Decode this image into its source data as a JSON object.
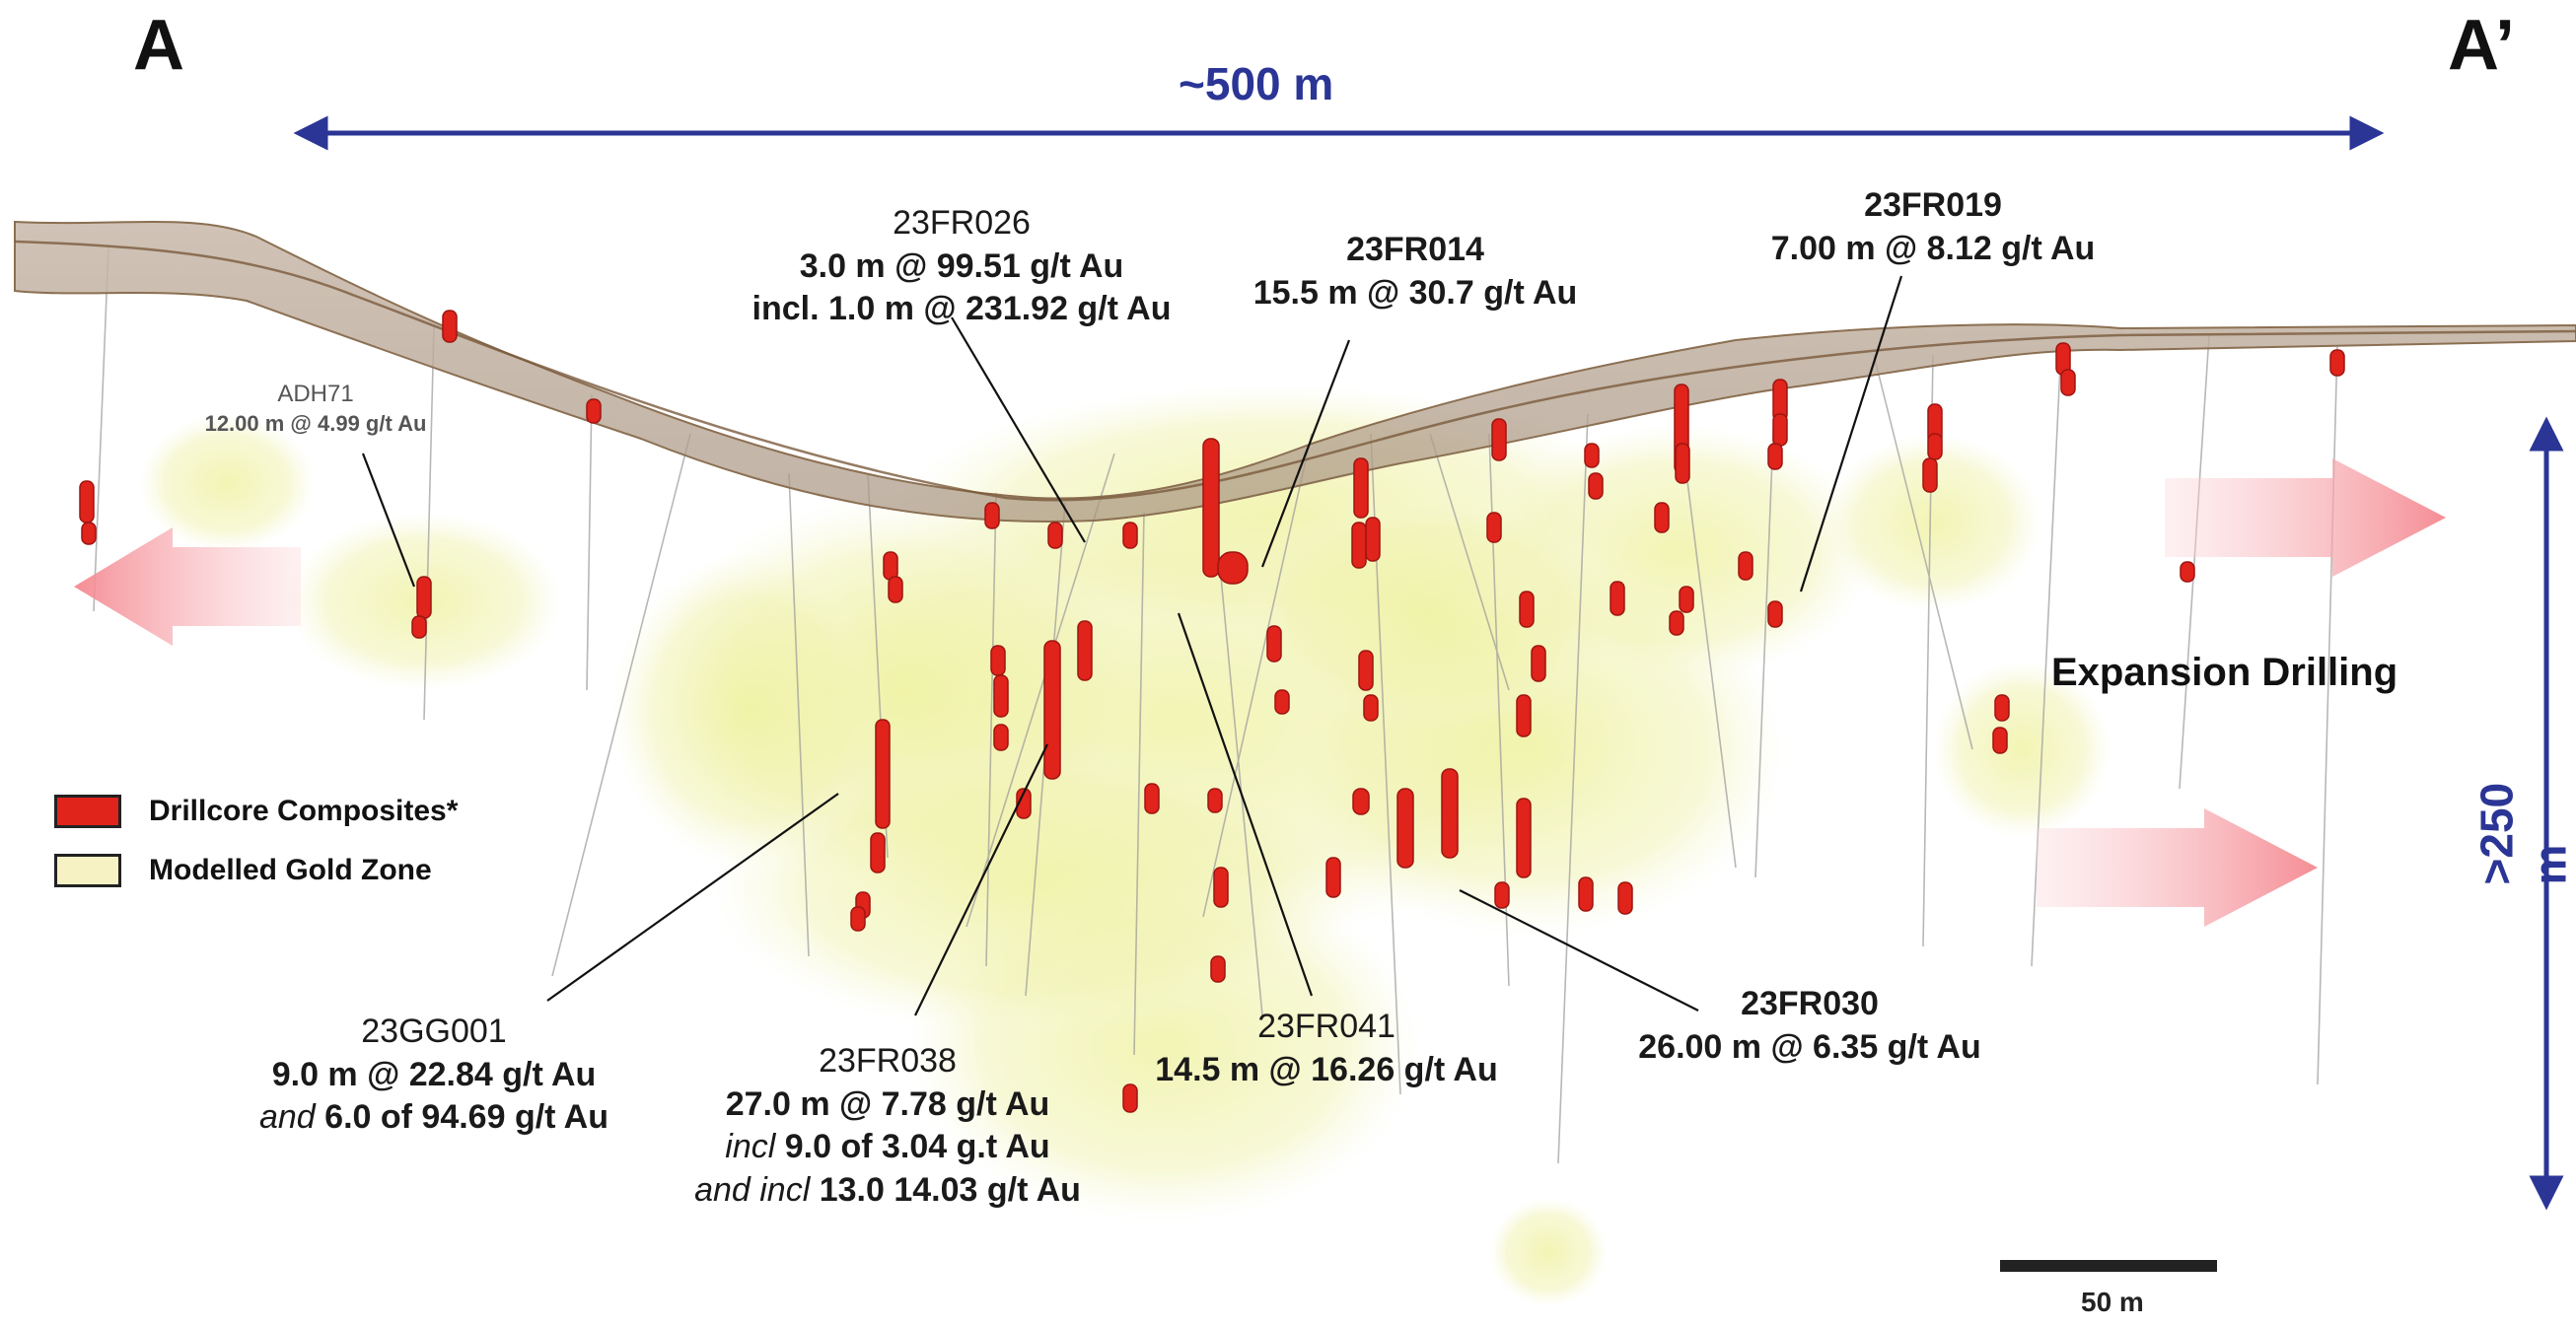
{
  "section": {
    "left_label": "A",
    "right_label": "A’",
    "width_label": "~500 m",
    "depth_label": ">250 m"
  },
  "legend": [
    {
      "label": "Drillcore Composites*",
      "color": "#e0231b"
    },
    {
      "label": "Modelled Gold Zone",
      "color": "#f7f2c4"
    }
  ],
  "expansion_label": "Expansion Drilling",
  "scale_bar": {
    "label": "50 m"
  },
  "colors": {
    "dimension_arrow": "#2b3595",
    "core": "#e0231b",
    "gold_zone": "#eef19a",
    "surface": "#b9a591",
    "expansion_arrow": "#f2a0a6"
  },
  "intercepts": {
    "adh71": {
      "hole": "ADH71",
      "line1": "12.00 m @ 4.99 g/t Au"
    },
    "fr026": {
      "hole": "23FR026",
      "line1": "3.0 m @ 99.51 g/t Au",
      "line2": "incl. 1.0 m @ 231.92 g/t Au"
    },
    "fr014": {
      "hole": "23FR014",
      "line1": "15.5 m @ 30.7 g/t Au"
    },
    "fr019": {
      "hole": "23FR019",
      "line1": "7.00 m  @ 8.12 g/t Au"
    },
    "gg001": {
      "hole": "23GG001",
      "line1": "9.0 m @ 22.84 g/t Au",
      "line2_prefix": "and",
      "line2": " 6.0 of 94.69 g/t Au"
    },
    "fr038": {
      "hole": "23FR038",
      "line1": "27.0 m @ 7.78 g/t Au",
      "line2_prefix": "incl",
      "line2": " 9.0 of 3.04 g.t Au",
      "line3_prefix": "and incl",
      "line3": " 13.0 14.03 g/t Au"
    },
    "fr041": {
      "hole": "23FR041",
      "line1": "14.5 m @ 16.26 g/t Au"
    },
    "fr030": {
      "hole": "23FR030",
      "line1": "26.00 m @ 6.35 g/t Au"
    }
  }
}
